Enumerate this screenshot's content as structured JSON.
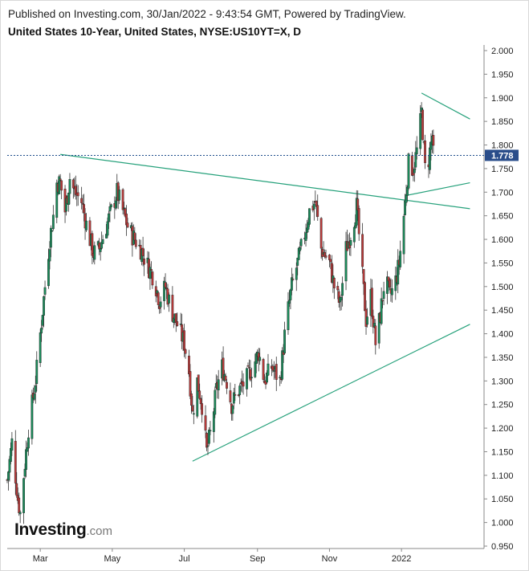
{
  "header": {
    "published": "Published on Investing.com, 30/Jan/2022 - 9:43:54 GMT, Powered by TradingView.",
    "title": "United States 10-Year, United States, NYSE:US10YT=X, D"
  },
  "logo": {
    "main": "Investing",
    "suffix": ".com"
  },
  "colors": {
    "up": "#1b8a5a",
    "down": "#b83a3a",
    "wick": "#333333",
    "trendline": "#26a17b",
    "price_line": "#1f4e8c",
    "price_label_bg": "#2a4d8a",
    "axis": "#888888"
  },
  "chart_data": {
    "type": "candlestick",
    "symbol": "US10YT=X",
    "interval": "D",
    "ylim": [
      0.95,
      2.0
    ],
    "yticks": [
      "2.000",
      "1.950",
      "1.900",
      "1.850",
      "1.800",
      "1.750",
      "1.700",
      "1.650",
      "1.600",
      "1.550",
      "1.500",
      "1.450",
      "1.400",
      "1.350",
      "1.300",
      "1.250",
      "1.200",
      "1.150",
      "1.100",
      "1.050",
      "1.000",
      "0.950"
    ],
    "xticks": [
      "Mar",
      "May",
      "Jul",
      "Sep",
      "Nov",
      "2022"
    ],
    "last_price": "1.778",
    "last_price_value": 1.778,
    "price_path": [
      [
        "2021-02-01",
        1.09
      ],
      [
        "2021-02-05",
        1.17
      ],
      [
        "2021-02-10",
        1.05
      ],
      [
        "2021-02-12",
        1.02
      ],
      [
        "2021-02-15",
        1.1
      ],
      [
        "2021-02-19",
        1.2
      ],
      [
        "2021-02-25",
        1.3
      ],
      [
        "2021-03-01",
        1.4
      ],
      [
        "2021-03-05",
        1.5
      ],
      [
        "2021-03-09",
        1.6
      ],
      [
        "2021-03-12",
        1.65
      ],
      [
        "2021-03-15",
        1.72
      ],
      [
        "2021-03-18",
        1.72
      ],
      [
        "2021-03-22",
        1.66
      ],
      [
        "2021-03-26",
        1.73
      ],
      [
        "2021-03-30",
        1.7
      ],
      [
        "2021-04-05",
        1.68
      ],
      [
        "2021-04-10",
        1.62
      ],
      [
        "2021-04-15",
        1.57
      ],
      [
        "2021-04-20",
        1.58
      ],
      [
        "2021-04-25",
        1.62
      ],
      [
        "2021-04-30",
        1.66
      ],
      [
        "2021-05-05",
        1.7
      ],
      [
        "2021-05-10",
        1.66
      ],
      [
        "2021-05-15",
        1.62
      ],
      [
        "2021-05-20",
        1.6
      ],
      [
        "2021-05-25",
        1.58
      ],
      [
        "2021-05-30",
        1.55
      ],
      [
        "2021-06-05",
        1.52
      ],
      [
        "2021-06-10",
        1.47
      ],
      [
        "2021-06-15",
        1.5
      ],
      [
        "2021-06-20",
        1.45
      ],
      [
        "2021-06-25",
        1.42
      ],
      [
        "2021-07-01",
        1.38
      ],
      [
        "2021-07-05",
        1.32
      ],
      [
        "2021-07-08",
        1.23
      ],
      [
        "2021-07-12",
        1.3
      ],
      [
        "2021-07-16",
        1.25
      ],
      [
        "2021-07-20",
        1.15
      ],
      [
        "2021-07-24",
        1.2
      ],
      [
        "2021-07-28",
        1.28
      ],
      [
        "2021-08-02",
        1.33
      ],
      [
        "2021-08-06",
        1.3
      ],
      [
        "2021-08-10",
        1.25
      ],
      [
        "2021-08-16",
        1.28
      ],
      [
        "2021-08-22",
        1.3
      ],
      [
        "2021-08-28",
        1.33
      ],
      [
        "2021-09-02",
        1.36
      ],
      [
        "2021-09-07",
        1.3
      ],
      [
        "2021-09-13",
        1.33
      ],
      [
        "2021-09-20",
        1.3
      ],
      [
        "2021-09-25",
        1.42
      ],
      [
        "2021-09-30",
        1.5
      ],
      [
        "2021-10-05",
        1.55
      ],
      [
        "2021-10-10",
        1.6
      ],
      [
        "2021-10-15",
        1.66
      ],
      [
        "2021-10-20",
        1.68
      ],
      [
        "2021-10-25",
        1.58
      ],
      [
        "2021-11-01",
        1.55
      ],
      [
        "2021-11-05",
        1.5
      ],
      [
        "2021-11-10",
        1.46
      ],
      [
        "2021-11-15",
        1.58
      ],
      [
        "2021-11-20",
        1.62
      ],
      [
        "2021-11-24",
        1.67
      ],
      [
        "2021-11-28",
        1.55
      ],
      [
        "2021-12-02",
        1.43
      ],
      [
        "2021-12-06",
        1.48
      ],
      [
        "2021-12-10",
        1.38
      ],
      [
        "2021-12-14",
        1.44
      ],
      [
        "2021-12-18",
        1.52
      ],
      [
        "2021-12-22",
        1.48
      ],
      [
        "2021-12-26",
        1.5
      ],
      [
        "2021-12-30",
        1.55
      ],
      [
        "2022-01-03",
        1.65
      ],
      [
        "2022-01-07",
        1.76
      ],
      [
        "2022-01-11",
        1.75
      ],
      [
        "2022-01-15",
        1.8
      ],
      [
        "2022-01-18",
        1.87
      ],
      [
        "2022-01-21",
        1.75
      ],
      [
        "2022-01-24",
        1.77
      ],
      [
        "2022-01-27",
        1.82
      ],
      [
        "2022-01-28",
        1.778
      ]
    ],
    "trendlines": [
      {
        "from": [
          "2021-03-18",
          1.78
        ],
        "to": [
          "2022-02-28",
          1.665
        ]
      },
      {
        "from": [
          "2021-07-08",
          1.13
        ],
        "to": [
          "2022-02-28",
          1.42
        ]
      },
      {
        "from": [
          "2022-01-18",
          1.91
        ],
        "to": [
          "2022-02-28",
          1.855
        ]
      },
      {
        "from": [
          "2022-01-05",
          1.693
        ],
        "to": [
          "2022-02-28",
          1.72
        ]
      }
    ]
  }
}
